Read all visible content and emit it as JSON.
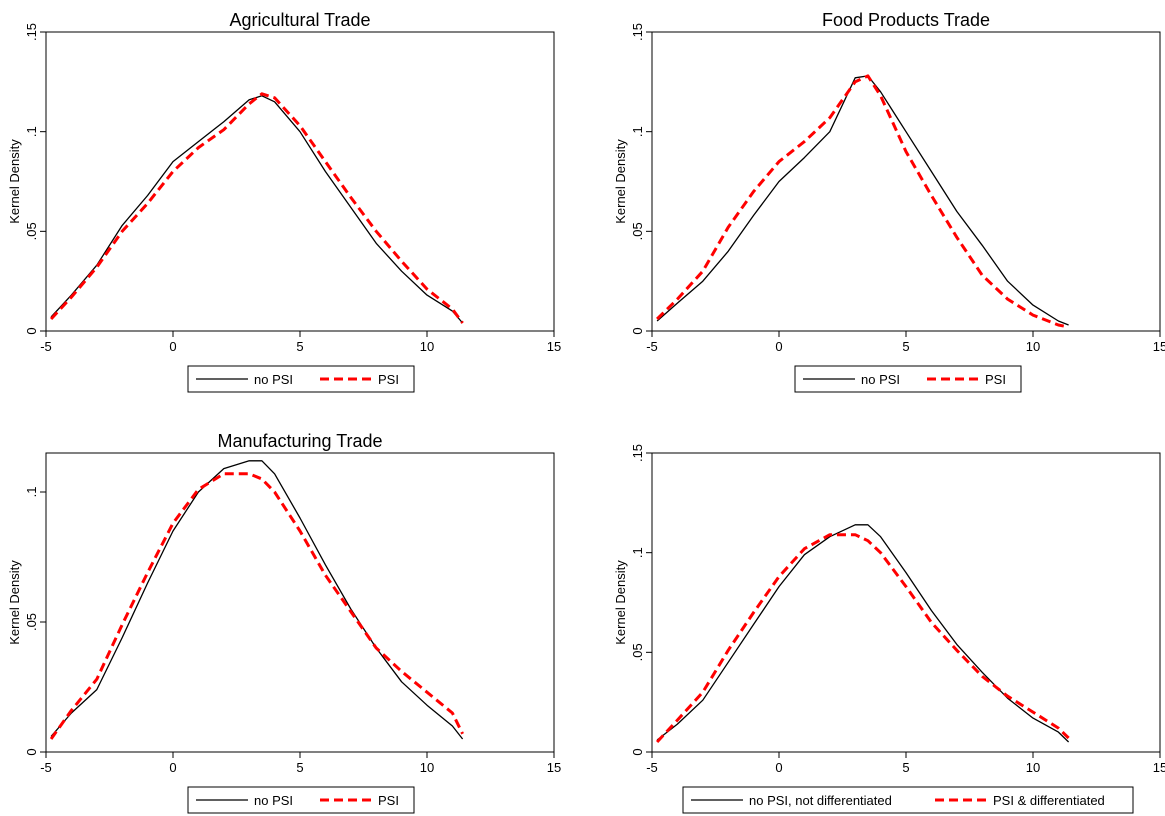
{
  "colors": {
    "no_psi": "#000000",
    "psi": "#ff0000"
  },
  "chart_data": [
    {
      "type": "line",
      "title": "Agricultural Trade",
      "xlabel": "",
      "ylabel": "Kernel Density",
      "xlim": [
        -5,
        15
      ],
      "ylim": [
        0,
        0.15
      ],
      "xticks": [
        "-5",
        "0",
        "5",
        "10",
        "15"
      ],
      "yticks": [
        "0",
        ".05",
        ".1",
        ".15"
      ],
      "ytick_values": [
        0,
        0.05,
        0.1,
        0.15
      ],
      "legend": [
        "no PSI",
        "PSI"
      ],
      "grid": false,
      "series": [
        {
          "name": "no PSI",
          "style": "solid",
          "x": [
            -4.8,
            -4,
            -3,
            -2,
            -1,
            0,
            1,
            2,
            3,
            3.5,
            4,
            5,
            6,
            7,
            8,
            9,
            10,
            11,
            11.4
          ],
          "y": [
            0.007,
            0.018,
            0.033,
            0.053,
            0.068,
            0.085,
            0.095,
            0.105,
            0.116,
            0.118,
            0.115,
            0.1,
            0.08,
            0.062,
            0.044,
            0.03,
            0.018,
            0.01,
            0.004
          ]
        },
        {
          "name": "PSI",
          "style": "dashed",
          "x": [
            -4.8,
            -4,
            -3,
            -2,
            -1,
            0,
            1,
            2,
            3,
            3.5,
            4,
            5,
            6,
            7,
            8,
            9,
            10,
            11,
            11.4
          ],
          "y": [
            0.006,
            0.017,
            0.032,
            0.05,
            0.064,
            0.08,
            0.092,
            0.101,
            0.114,
            0.119,
            0.117,
            0.103,
            0.085,
            0.067,
            0.05,
            0.035,
            0.021,
            0.011,
            0.004
          ]
        }
      ]
    },
    {
      "type": "line",
      "title": "Food Products Trade",
      "xlabel": "",
      "ylabel": "Kernel Density",
      "xlim": [
        -5,
        15
      ],
      "ylim": [
        0,
        0.15
      ],
      "xticks": [
        "-5",
        "0",
        "5",
        "10",
        "15"
      ],
      "yticks": [
        "0",
        ".05",
        ".1",
        ".15"
      ],
      "ytick_values": [
        0,
        0.05,
        0.1,
        0.15
      ],
      "legend": [
        "no PSI",
        "PSI"
      ],
      "grid": false,
      "series": [
        {
          "name": "no PSI",
          "style": "solid",
          "x": [
            -4.8,
            -4,
            -3,
            -2,
            -1,
            0,
            1,
            2,
            3,
            3.5,
            4,
            5,
            6,
            7,
            8,
            9,
            10,
            11,
            11.4
          ],
          "y": [
            0.005,
            0.014,
            0.025,
            0.04,
            0.058,
            0.075,
            0.087,
            0.1,
            0.127,
            0.128,
            0.12,
            0.1,
            0.08,
            0.06,
            0.043,
            0.025,
            0.013,
            0.005,
            0.003
          ]
        },
        {
          "name": "PSI",
          "style": "dashed",
          "x": [
            -4.8,
            -4,
            -3,
            -2,
            -1,
            0,
            1,
            2,
            3,
            3.5,
            4,
            5,
            6,
            7,
            8,
            9,
            10,
            11,
            11.4
          ],
          "y": [
            0.006,
            0.016,
            0.03,
            0.052,
            0.07,
            0.085,
            0.095,
            0.107,
            0.125,
            0.128,
            0.118,
            0.09,
            0.068,
            0.047,
            0.028,
            0.016,
            0.008,
            0.003,
            0.002
          ]
        }
      ]
    },
    {
      "type": "line",
      "title": "Manufacturing Trade",
      "xlabel": "",
      "ylabel": "Kernel Density",
      "xlim": [
        -5,
        15
      ],
      "ylim": [
        0,
        0.115
      ],
      "xticks": [
        "-5",
        "0",
        "5",
        "10",
        "15"
      ],
      "yticks": [
        "0",
        ".05",
        ".1"
      ],
      "ytick_values": [
        0,
        0.05,
        0.1
      ],
      "legend": [
        "no PSI",
        "PSI"
      ],
      "grid": false,
      "series": [
        {
          "name": "no PSI",
          "style": "solid",
          "x": [
            -4.8,
            -4,
            -3,
            -2,
            -1,
            0,
            1,
            2,
            3,
            3.5,
            4,
            5,
            6,
            7,
            8,
            9,
            10,
            11,
            11.4
          ],
          "y": [
            0.006,
            0.015,
            0.024,
            0.044,
            0.065,
            0.085,
            0.1,
            0.109,
            0.112,
            0.112,
            0.107,
            0.09,
            0.072,
            0.055,
            0.04,
            0.027,
            0.018,
            0.01,
            0.005
          ]
        },
        {
          "name": "PSI",
          "style": "dashed",
          "x": [
            -4.8,
            -4,
            -3,
            -2,
            -1,
            0,
            1,
            2,
            3,
            3.5,
            4,
            5,
            6,
            7,
            8,
            9,
            10,
            11,
            11.4
          ],
          "y": [
            0.005,
            0.016,
            0.028,
            0.049,
            0.069,
            0.088,
            0.101,
            0.107,
            0.107,
            0.105,
            0.1,
            0.085,
            0.068,
            0.054,
            0.04,
            0.031,
            0.023,
            0.015,
            0.007
          ]
        }
      ]
    },
    {
      "type": "line",
      "title": "",
      "xlabel": "",
      "ylabel": "Kernel Density",
      "xlim": [
        -5,
        15
      ],
      "ylim": [
        0,
        0.15
      ],
      "xticks": [
        "-5",
        "0",
        "5",
        "10",
        "15"
      ],
      "yticks": [
        "0",
        ".05",
        ".1",
        ".15"
      ],
      "ytick_values": [
        0,
        0.05,
        0.1,
        0.15
      ],
      "legend": [
        "no PSI, not differentiated",
        "PSI & differentiated"
      ],
      "grid": false,
      "series": [
        {
          "name": "no PSI, not differentiated",
          "style": "solid",
          "x": [
            -4.8,
            -4,
            -3,
            -2,
            -1,
            0,
            1,
            2,
            3,
            3.5,
            4,
            5,
            6,
            7,
            8,
            9,
            10,
            11,
            11.4
          ],
          "y": [
            0.006,
            0.014,
            0.026,
            0.045,
            0.064,
            0.083,
            0.099,
            0.108,
            0.114,
            0.114,
            0.108,
            0.09,
            0.071,
            0.054,
            0.04,
            0.027,
            0.017,
            0.01,
            0.005
          ]
        },
        {
          "name": "PSI & differentiated",
          "style": "dashed",
          "x": [
            -4.8,
            -4,
            -3,
            -2,
            -1,
            0,
            1,
            2,
            3,
            3.5,
            4,
            5,
            6,
            7,
            8,
            9,
            10,
            11,
            11.4
          ],
          "y": [
            0.005,
            0.016,
            0.03,
            0.051,
            0.07,
            0.088,
            0.102,
            0.109,
            0.109,
            0.106,
            0.1,
            0.083,
            0.065,
            0.051,
            0.038,
            0.028,
            0.02,
            0.012,
            0.007
          ]
        }
      ]
    }
  ]
}
